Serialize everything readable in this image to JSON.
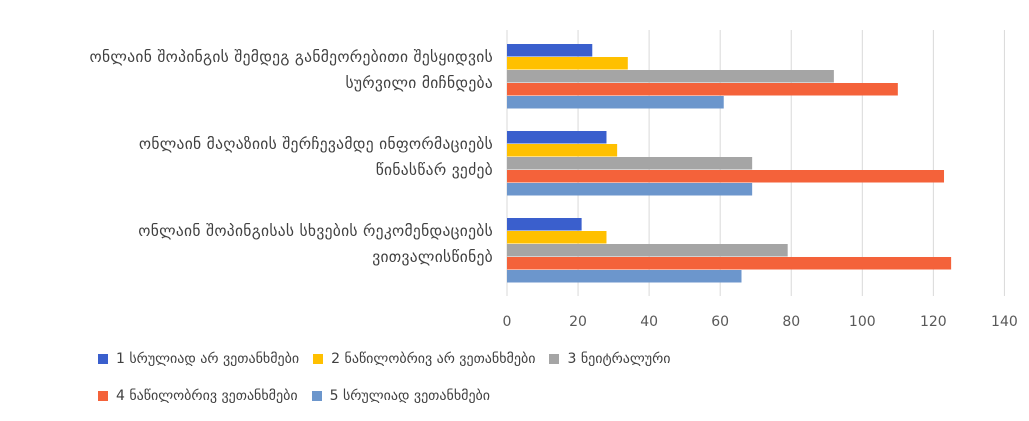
{
  "chart_data": {
    "type": "bar",
    "orientation": "horizontal",
    "categories": [
      [
        "ონლაინ შოპინგის შემდეგ განმეორებითი შესყიდვის",
        "სურვილი მიჩნდება"
      ],
      [
        "ონლაინ მაღაზიის შერჩევამდე ინფორმაციებს",
        "წინასწარ ვეძებ"
      ],
      [
        "ონლაინ შოპინგისას სხვების რეკომენდაციებს",
        "ვითვალისწინებ"
      ]
    ],
    "series": [
      {
        "name": "1 სრულიად არ ვეთანხმები",
        "color": "#3a5fcd",
        "values": [
          24,
          28,
          21
        ]
      },
      {
        "name": "2 ნაწილობრივ არ ვეთანხმები",
        "color": "#ffc000",
        "values": [
          34,
          31,
          28
        ]
      },
      {
        "name": "3 ნეიტრალური",
        "color": "#a5a5a5",
        "values": [
          92,
          69,
          79
        ]
      },
      {
        "name": "4 ნაწილობრივ ვეთანხმები",
        "color": "#f4623a",
        "values": [
          110,
          123,
          125
        ]
      },
      {
        "name": "5 სრულიად ვეთანხმები",
        "color": "#6c96cc",
        "values": [
          61,
          69,
          66
        ]
      }
    ],
    "xlim": [
      0,
      140
    ],
    "ticks": [
      "0",
      "20",
      "40",
      "60",
      "80",
      "100",
      "120",
      "140"
    ],
    "grid": true,
    "legend_position": "bottom"
  }
}
